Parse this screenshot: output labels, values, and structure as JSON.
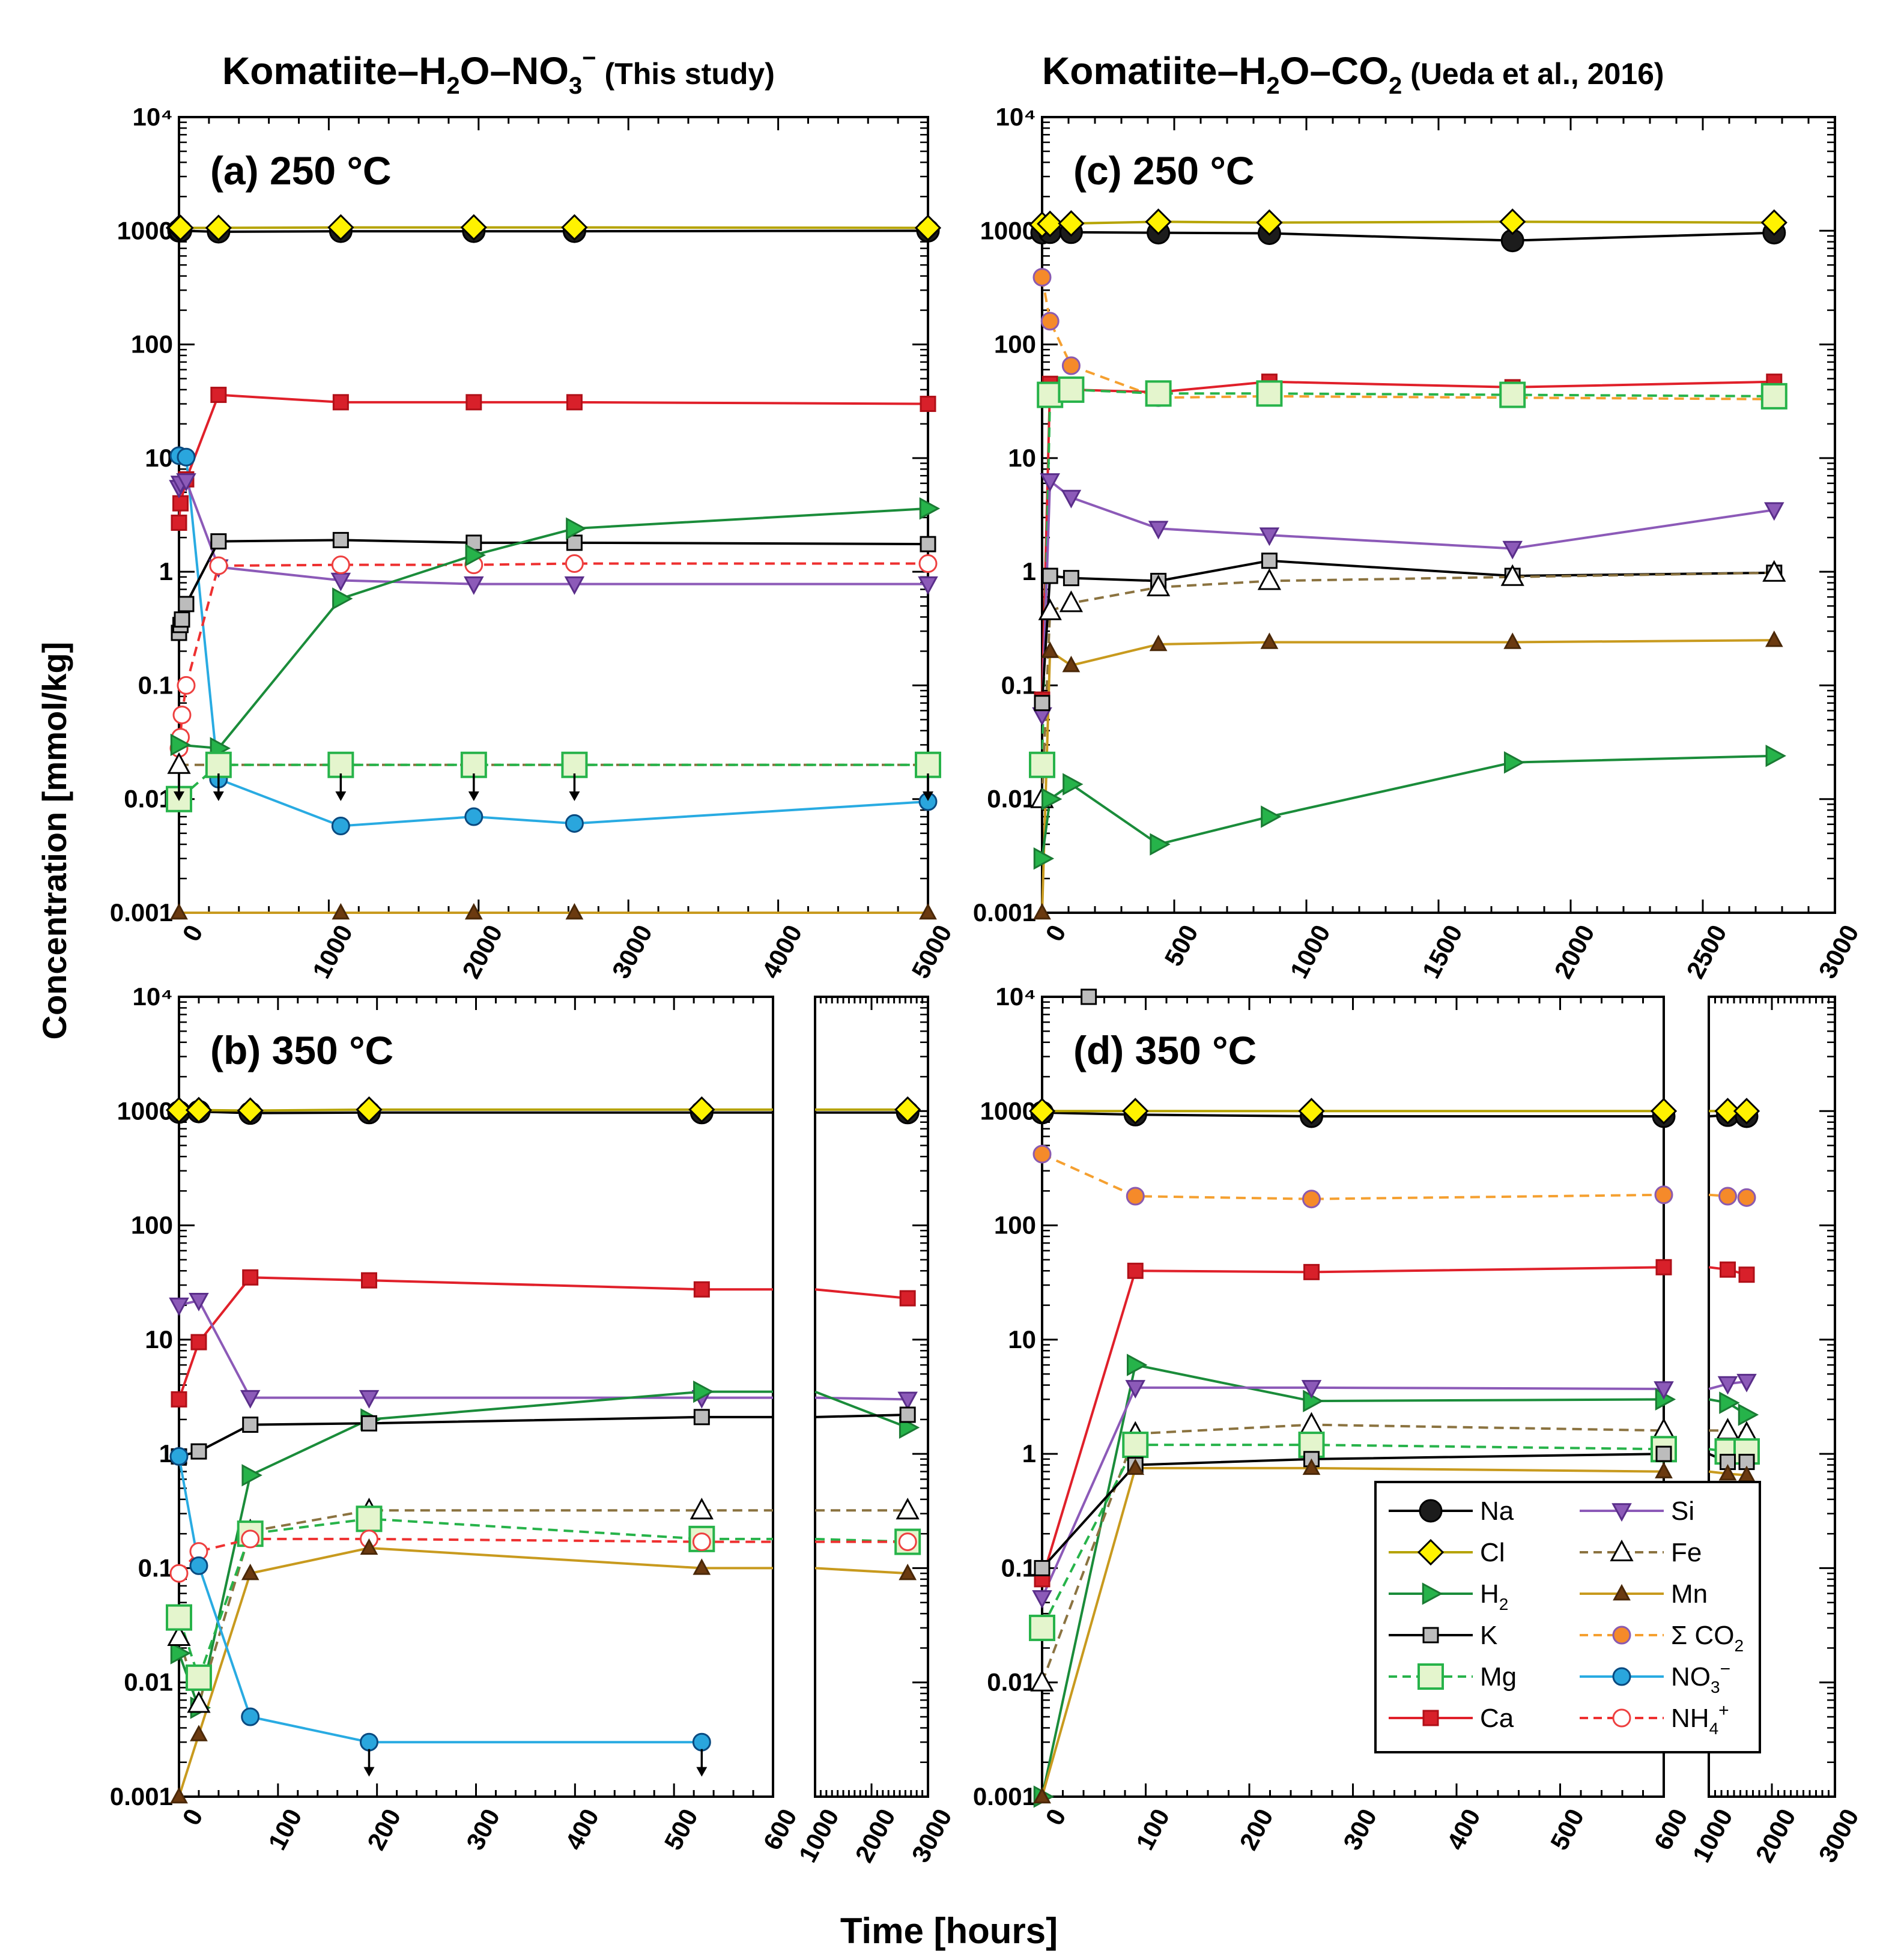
{
  "header": {
    "left_main": "Komatiite–H",
    "left_sub2": "2",
    "left_mid": "O–NO",
    "left_sub3": "3",
    "left_sup": "−",
    "left_note": " (This study)",
    "right_main": "Komatiite–H",
    "right_sub2": "2",
    "right_mid": "O–CO",
    "right_sub3": "2",
    "right_note": " (Ueda et al., 2016)"
  },
  "ylabel": "Concentration [mmol/kg]",
  "xlabel": "Time [hours]",
  "legend": [
    {
      "key": "Na",
      "label": "Na"
    },
    {
      "key": "Si",
      "label": "Si"
    },
    {
      "key": "Cl",
      "label": "Cl"
    },
    {
      "key": "Fe",
      "label": "Fe"
    },
    {
      "key": "H2",
      "label": "H",
      "sub": "2"
    },
    {
      "key": "Mn",
      "label": "Mn"
    },
    {
      "key": "K",
      "label": "K"
    },
    {
      "key": "CO2",
      "label": "Σ CO",
      "sub": "2"
    },
    {
      "key": "Mg",
      "label": "Mg"
    },
    {
      "key": "NO3",
      "label": "NO",
      "sub": "3",
      "sup": "−"
    },
    {
      "key": "Ca",
      "label": "Ca"
    },
    {
      "key": "NH4",
      "label": "NH",
      "sub": "4",
      "sup": "+"
    }
  ],
  "styles": {
    "Na": {
      "marker": "circle",
      "fill": "#1c1c1c",
      "stroke": "#000000",
      "line": "#000000",
      "dash": false,
      "size": 18
    },
    "Cl": {
      "marker": "diamond",
      "fill": "#fff200",
      "stroke": "#000000",
      "line": "#b5a300",
      "dash": false,
      "size": 20
    },
    "H2": {
      "marker": "tri-right",
      "fill": "#26b34a",
      "stroke": "#1a7a33",
      "line": "#1a8c3a",
      "dash": false,
      "size": 17
    },
    "K": {
      "marker": "square",
      "fill": "#bcbcbc",
      "stroke": "#000000",
      "line": "#000000",
      "dash": false,
      "size": 12
    },
    "Mg": {
      "marker": "square-open",
      "fill": "#e4f5cd",
      "stroke": "#27b34a",
      "line": "#27b34a",
      "dash": true,
      "size": 20
    },
    "Ca": {
      "marker": "square",
      "fill": "#d8202a",
      "stroke": "#b01018",
      "line": "#e0202a",
      "dash": false,
      "size": 12
    },
    "Si": {
      "marker": "tri-down",
      "fill": "#8c5ab8",
      "stroke": "#5a2e8a",
      "line": "#8c5ab8",
      "dash": false,
      "size": 15
    },
    "Fe": {
      "marker": "tri-up-open",
      "fill": "#ffffff",
      "stroke": "#000000",
      "line": "#8b7340",
      "dash": true,
      "size": 18
    },
    "Mn": {
      "marker": "tri-up",
      "fill": "#6b3a10",
      "stroke": "#4a2808",
      "line": "#c89a1e",
      "dash": false,
      "size": 13
    },
    "CO2": {
      "marker": "circle",
      "fill": "#f58a2a",
      "stroke": "#8a5ab0",
      "line": "#f5a030",
      "dash": true,
      "size": 14
    },
    "NO3": {
      "marker": "circle",
      "fill": "#2aa6dd",
      "stroke": "#0a4a80",
      "line": "#29abe2",
      "dash": false,
      "size": 14
    },
    "NH4": {
      "marker": "circle-open",
      "fill": "#ffffff",
      "stroke": "#ee4040",
      "line": "#ee3030",
      "dash": true,
      "size": 14
    }
  },
  "chart_data": [
    {
      "id": "a",
      "type": "scatter",
      "label": "(a) 250 °C",
      "yscale": "log",
      "ylim": [
        0.001,
        10000
      ],
      "xlim": [
        0,
        5000
      ],
      "xticks": [
        0,
        1000,
        2000,
        3000,
        4000,
        5000
      ],
      "yticks": [
        "0.001",
        "0.01",
        "0.1",
        "1",
        "10",
        "100",
        "1000",
        "10⁴"
      ],
      "series": [
        {
          "key": "Na",
          "x": [
            0,
            10,
            264,
            1080,
            1968,
            2640,
            5000
          ],
          "y": [
            1000,
            1000,
            980,
            990,
            990,
            990,
            1000
          ]
        },
        {
          "key": "Cl",
          "x": [
            0,
            10,
            264,
            1080,
            1968,
            2640,
            5000
          ],
          "y": [
            1060,
            1060,
            1060,
            1070,
            1070,
            1070,
            1060
          ]
        },
        {
          "key": "Ca",
          "x": [
            0,
            10,
            48,
            264,
            1080,
            1968,
            2640,
            5000
          ],
          "y": [
            2.7,
            4,
            6.5,
            36,
            31,
            31,
            31,
            30
          ]
        },
        {
          "key": "NO3",
          "x": [
            0,
            48,
            264,
            1080,
            1968,
            2640,
            5000
          ],
          "y": [
            10.5,
            10.2,
            0.015,
            0.0058,
            0.007,
            0.0061,
            0.0095
          ]
        },
        {
          "key": "Si",
          "x": [
            0,
            10,
            48,
            264,
            1080,
            1968,
            2640,
            5000
          ],
          "y": [
            5.5,
            6,
            6.3,
            1.1,
            0.84,
            0.78,
            0.78,
            0.78
          ]
        },
        {
          "key": "K",
          "x": [
            0,
            10,
            20,
            48,
            264,
            1080,
            1968,
            2640,
            5000
          ],
          "y": [
            0.29,
            0.34,
            0.38,
            0.52,
            1.85,
            1.9,
            1.8,
            1.8,
            1.75
          ]
        },
        {
          "key": "NH4",
          "x": [
            0,
            10,
            20,
            48,
            264,
            1080,
            1968,
            2640,
            5000
          ],
          "y": [
            0.028,
            0.035,
            0.055,
            0.1,
            1.13,
            1.15,
            1.15,
            1.18,
            1.18
          ]
        },
        {
          "key": "H2",
          "x": [
            0,
            264,
            1080,
            1968,
            2640,
            5000
          ],
          "y": [
            0.03,
            0.028,
            0.58,
            1.4,
            2.4,
            3.6
          ]
        },
        {
          "key": "Fe",
          "x": [
            0,
            264,
            1080,
            1968,
            2640,
            5000
          ],
          "y": [
            0.02,
            0.02,
            0.02,
            0.02,
            0.02,
            0.02
          ]
        },
        {
          "key": "Mg",
          "x": [
            0,
            264,
            1080,
            1968,
            2640,
            5000
          ],
          "y": [
            0.01,
            0.02,
            0.02,
            0.02,
            0.02,
            0.02
          ]
        },
        {
          "key": "Mn",
          "x": [
            0,
            1080,
            1968,
            2640,
            5000
          ],
          "y": [
            0.001,
            0.001,
            0.001,
            0.001,
            0.001
          ]
        }
      ],
      "arrows": [
        {
          "x": 0,
          "y": 0.0135
        },
        {
          "x": 264,
          "y": 0.0135
        },
        {
          "x": 1080,
          "y": 0.0135
        },
        {
          "x": 1968,
          "y": 0.0135
        },
        {
          "x": 2640,
          "y": 0.0135
        },
        {
          "x": 5000,
          "y": 0.0135
        }
      ]
    },
    {
      "id": "b",
      "type": "scatter",
      "label": "(b) 350 °C",
      "yscale": "log",
      "ylim": [
        0.001,
        10000
      ],
      "x_broken": true,
      "xlim": [
        0,
        600
      ],
      "xlim_right": [
        1000,
        3000
      ],
      "xticks": [
        0,
        100,
        200,
        300,
        400,
        500,
        600
      ],
      "xticks_right": [
        1000,
        2000,
        3000
      ],
      "yticks": [
        "0.001",
        "0.01",
        "0.1",
        "1",
        "10",
        "100",
        "1000",
        "10⁴"
      ],
      "series": [
        {
          "key": "Na",
          "x": [
            0,
            20,
            72,
            192,
            528,
            2640
          ],
          "y": [
            980,
            990,
            960,
            970,
            970,
            970
          ]
        },
        {
          "key": "Cl",
          "x": [
            0,
            20,
            72,
            192,
            528,
            2640
          ],
          "y": [
            1020,
            1020,
            1010,
            1030,
            1030,
            1030
          ]
        },
        {
          "key": "Ca",
          "x": [
            0,
            20,
            72,
            192,
            528,
            2640
          ],
          "y": [
            3,
            9.5,
            35,
            33,
            27.5,
            23
          ]
        },
        {
          "key": "Si",
          "x": [
            0,
            20,
            72,
            192,
            528,
            2640
          ],
          "y": [
            20,
            22,
            3.1,
            3.1,
            3.1,
            3
          ]
        },
        {
          "key": "H2",
          "x": [
            0,
            20,
            72,
            192,
            528,
            2640
          ],
          "y": [
            0.018,
            0.006,
            0.65,
            2,
            3.5,
            1.7
          ]
        },
        {
          "key": "K",
          "x": [
            0,
            20,
            72,
            192,
            528,
            2640
          ],
          "y": [
            0.95,
            1.05,
            1.8,
            1.85,
            2.1,
            2.2
          ]
        },
        {
          "key": "Fe",
          "x": [
            0,
            20,
            72,
            192,
            528,
            2640
          ],
          "y": [
            0.025,
            0.0065,
            0.21,
            0.32,
            0.32,
            0.32
          ]
        },
        {
          "key": "Mg",
          "x": [
            0,
            20,
            72,
            192,
            528,
            2640
          ],
          "y": [
            0.037,
            0.011,
            0.2,
            0.27,
            0.18,
            0.17
          ]
        },
        {
          "key": "NH4",
          "x": [
            0,
            20,
            72,
            192,
            528,
            2640
          ],
          "y": [
            0.09,
            0.14,
            0.18,
            0.18,
            0.17,
            0.17
          ]
        },
        {
          "key": "Mn",
          "x": [
            0,
            20,
            72,
            192,
            528,
            2640
          ],
          "y": [
            0.001,
            0.0035,
            0.09,
            0.15,
            0.1,
            0.09
          ]
        },
        {
          "key": "NO3",
          "x": [
            0,
            20,
            72,
            192,
            528
          ],
          "y": [
            0.95,
            0.105,
            0.005,
            0.003,
            0.003
          ]
        }
      ],
      "arrows": [
        {
          "x": 192,
          "y": 0.0021
        },
        {
          "x": 528,
          "y": 0.0021
        }
      ]
    },
    {
      "id": "c",
      "type": "scatter",
      "label": "(c) 250 °C",
      "yscale": "log",
      "ylim": [
        0.001,
        10000
      ],
      "xlim": [
        0,
        3000
      ],
      "xticks": [
        0,
        500,
        1000,
        1500,
        2000,
        2500,
        3000
      ],
      "yticks": [
        "0.001",
        "0.01",
        "0.1",
        "1",
        "10",
        "100",
        "1000",
        "10⁴"
      ],
      "series": [
        {
          "key": "Na",
          "x": [
            0,
            30,
            110,
            440,
            860,
            1780,
            2770
          ],
          "y": [
            960,
            970,
            970,
            960,
            950,
            820,
            960
          ]
        },
        {
          "key": "Cl",
          "x": [
            0,
            30,
            110,
            440,
            860,
            1780,
            2770
          ],
          "y": [
            1130,
            1150,
            1160,
            1200,
            1180,
            1200,
            1180
          ]
        },
        {
          "key": "CO2",
          "x": [
            0,
            30,
            110,
            440,
            860,
            1780,
            2770
          ],
          "y": [
            390,
            160,
            65,
            34,
            35,
            34,
            33
          ]
        },
        {
          "key": "Ca",
          "x": [
            0,
            30,
            110,
            440,
            860,
            1780,
            2770
          ],
          "y": [
            0.075,
            45,
            40,
            38,
            47,
            42,
            47
          ]
        },
        {
          "key": "Mg",
          "x": [
            0,
            30,
            110,
            440,
            860,
            1780,
            2770
          ],
          "y": [
            0.02,
            36,
            40,
            37,
            37,
            36,
            35
          ]
        },
        {
          "key": "Si",
          "x": [
            0,
            30,
            110,
            440,
            860,
            1780,
            2770
          ],
          "y": [
            0.055,
            6.3,
            4.5,
            2.4,
            2.1,
            1.6,
            3.5
          ]
        },
        {
          "key": "K",
          "x": [
            0,
            30,
            110,
            440,
            860,
            1780,
            2770
          ],
          "y": [
            0.07,
            0.92,
            0.88,
            0.83,
            1.25,
            0.92,
            0.98
          ]
        },
        {
          "key": "Fe",
          "x": [
            0,
            30,
            110,
            440,
            860,
            1780,
            2770
          ],
          "y": [
            0.01,
            0.45,
            0.53,
            0.73,
            0.83,
            0.9,
            0.98
          ]
        },
        {
          "key": "Mn",
          "x": [
            0,
            30,
            110,
            440,
            860,
            1780,
            2770
          ],
          "y": [
            0.001,
            0.2,
            0.15,
            0.23,
            0.24,
            0.24,
            0.25
          ]
        },
        {
          "key": "H2",
          "x": [
            0,
            30,
            110,
            440,
            860,
            1780,
            2770
          ],
          "y": [
            0.003,
            0.01,
            0.0135,
            0.004,
            0.007,
            0.021,
            0.024
          ]
        }
      ],
      "arrows": []
    },
    {
      "id": "d",
      "type": "scatter",
      "label": "(d) 350 °C",
      "yscale": "log",
      "ylim": [
        0.001,
        10000
      ],
      "x_broken": true,
      "xlim": [
        0,
        600
      ],
      "xlim_right": [
        1000,
        3000
      ],
      "xticks": [
        0,
        100,
        200,
        300,
        400,
        500,
        600
      ],
      "xticks_right": [
        1000,
        2000,
        3000
      ],
      "yticks": [
        "0.001",
        "0.01",
        "0.1",
        "1",
        "10",
        "100",
        "1000",
        "10⁴"
      ],
      "series": [
        {
          "key": "Na",
          "x": [
            0,
            90,
            260,
            600,
            1300,
            1600
          ],
          "y": [
            970,
            930,
            900,
            900,
            920,
            900
          ]
        },
        {
          "key": "Cl",
          "x": [
            0,
            90,
            260,
            600,
            1300,
            1600
          ],
          "y": [
            1000,
            1000,
            1000,
            1000,
            1000,
            1000
          ]
        },
        {
          "key": "CO2",
          "x": [
            0,
            90,
            260,
            600,
            1300,
            1600
          ],
          "y": [
            420,
            180,
            170,
            185,
            180,
            175
          ]
        },
        {
          "key": "Ca",
          "x": [
            0,
            90,
            260,
            600,
            1300,
            1600
          ],
          "y": [
            0.08,
            40,
            39,
            43,
            41,
            37
          ]
        },
        {
          "key": "H2",
          "x": [
            0,
            90,
            260,
            600,
            1300,
            1600
          ],
          "y": [
            0.001,
            6,
            2.9,
            3,
            2.8,
            2.2
          ]
        },
        {
          "key": "Si",
          "x": [
            0,
            90,
            260,
            600,
            1300,
            1600
          ],
          "y": [
            0.055,
            3.8,
            3.8,
            3.7,
            4.1,
            4.3
          ]
        },
        {
          "key": "Fe",
          "x": [
            0,
            90,
            260,
            600,
            1300,
            1600
          ],
          "y": [
            0.01,
            1.5,
            1.8,
            1.6,
            1.6,
            1.5
          ]
        },
        {
          "key": "Mg",
          "x": [
            0,
            90,
            260,
            600,
            1300,
            1600
          ],
          "y": [
            0.03,
            1.2,
            1.2,
            1.1,
            1.05,
            1.05
          ]
        },
        {
          "key": "K",
          "x": [
            0,
            90,
            260,
            600,
            1300,
            1600
          ],
          "y": [
            0.1,
            0.8,
            0.9,
            1,
            0.85,
            0.85
          ]
        },
        {
          "key": "Mn",
          "x": [
            0,
            90,
            260,
            600,
            1300,
            1600
          ],
          "y": [
            0.001,
            0.75,
            0.75,
            0.7,
            0.67,
            0.65
          ]
        }
      ],
      "outliers": [
        {
          "key": "K",
          "x": 45,
          "y": 10000
        }
      ],
      "arrows": []
    }
  ]
}
